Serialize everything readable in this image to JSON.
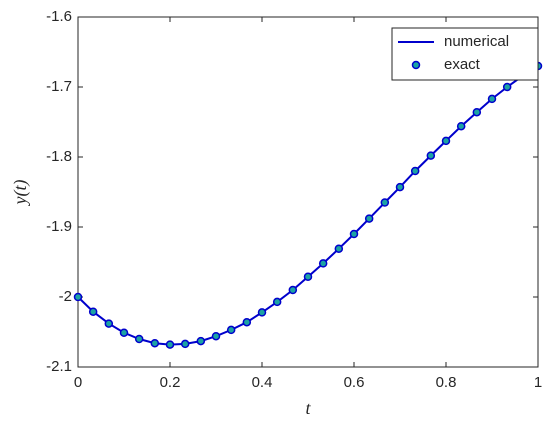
{
  "chart_data": {
    "type": "line",
    "xlabel": "t",
    "ylabel": "y(t)",
    "x": [
      0,
      0.033,
      0.067,
      0.1,
      0.133,
      0.167,
      0.2,
      0.233,
      0.267,
      0.3,
      0.333,
      0.367,
      0.4,
      0.433,
      0.467,
      0.5,
      0.533,
      0.567,
      0.6,
      0.633,
      0.667,
      0.7,
      0.733,
      0.767,
      0.8,
      0.833,
      0.867,
      0.9,
      0.933,
      0.967,
      1
    ],
    "series": [
      {
        "name": "numerical",
        "color": "#0000cc",
        "marker": false,
        "values": [
          -2,
          -2.021,
          -2.038,
          -2.051,
          -2.06,
          -2.066,
          -2.068,
          -2.067,
          -2.063,
          -2.056,
          -2.047,
          -2.036,
          -2.022,
          -2.007,
          -1.99,
          -1.971,
          -1.952,
          -1.931,
          -1.91,
          -1.888,
          -1.865,
          -1.843,
          -1.82,
          -1.798,
          -1.777,
          -1.756,
          -1.736,
          -1.717,
          -1.7,
          -1.684,
          -1.67
        ]
      },
      {
        "name": "exact",
        "color": "#1ca3a3",
        "marker": true,
        "values": [
          -2,
          -2.021,
          -2.038,
          -2.051,
          -2.06,
          -2.066,
          -2.068,
          -2.067,
          -2.063,
          -2.056,
          -2.047,
          -2.036,
          -2.022,
          -2.007,
          -1.99,
          -1.971,
          -1.952,
          -1.931,
          -1.91,
          -1.888,
          -1.865,
          -1.843,
          -1.82,
          -1.798,
          -1.777,
          -1.756,
          -1.736,
          -1.717,
          -1.7,
          -1.684,
          -1.67
        ]
      }
    ],
    "xlim": [
      0,
      1
    ],
    "xticks": [
      0,
      0.2,
      0.4,
      0.6,
      0.8,
      1
    ],
    "ylim": [
      -2.1,
      -1.6
    ],
    "yticks": [
      -2.1,
      -2,
      -1.9,
      -1.8,
      -1.7,
      -1.6
    ],
    "legend": "upper right"
  }
}
